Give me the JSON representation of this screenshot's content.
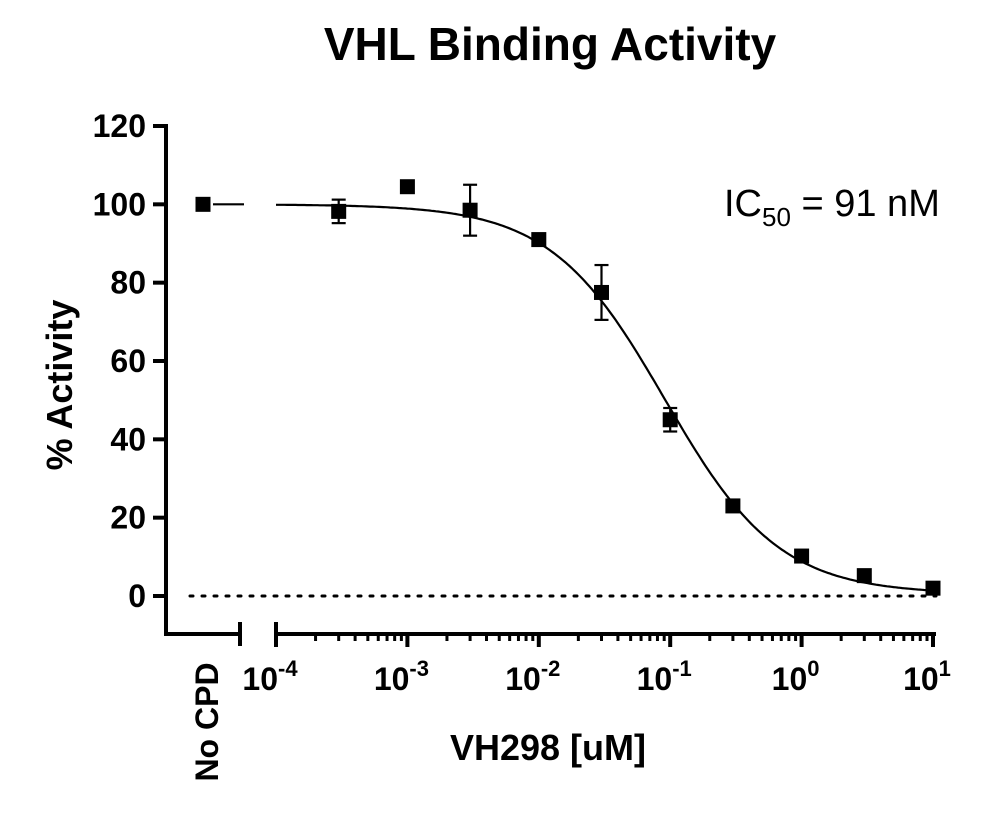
{
  "chart_data": {
    "type": "scatter",
    "title": "VHL Binding Activity",
    "xlabel": "VH298 [uM]",
    "ylabel": "% Activity",
    "x_scale": "log",
    "xlim": [
      0.0001,
      10
    ],
    "ylim": [
      -10,
      120
    ],
    "y_ticks": [
      0,
      20,
      40,
      60,
      80,
      100,
      120
    ],
    "x_ticks": [
      {
        "value": 0.0001,
        "base": "10",
        "exp": "-4"
      },
      {
        "value": 0.001,
        "base": "10",
        "exp": "-3"
      },
      {
        "value": 0.01,
        "base": "10",
        "exp": "-2"
      },
      {
        "value": 0.1,
        "base": "10",
        "exp": "-1"
      },
      {
        "value": 1,
        "base": "10",
        "exp": "0"
      },
      {
        "value": 10,
        "base": "10",
        "exp": "1"
      }
    ],
    "control": {
      "label": "No CPD",
      "value": 100
    },
    "annotation": {
      "prefix": "IC",
      "subscript": "50",
      "suffix": " = 91 nM"
    },
    "reference_line_y": 0,
    "series": [
      {
        "points": [
          {
            "x": 0.0003,
            "y": 98.2,
            "err": 3.0
          },
          {
            "x": 0.001,
            "y": 104.5,
            "err": 0
          },
          {
            "x": 0.003,
            "y": 98.5,
            "err": 6.5
          },
          {
            "x": 0.01,
            "y": 91.0,
            "err": 1.5
          },
          {
            "x": 0.03,
            "y": 77.5,
            "err": 7.0
          },
          {
            "x": 0.1,
            "y": 45.0,
            "err": 3.0
          },
          {
            "x": 0.3,
            "y": 23.0,
            "err": 0
          },
          {
            "x": 1,
            "y": 10.2,
            "err": 0
          },
          {
            "x": 3,
            "y": 5.2,
            "err": 0
          },
          {
            "x": 10,
            "y": 2.0,
            "err": 0
          }
        ]
      }
    ],
    "fit": {
      "top": 100,
      "bottom": 0.5,
      "ic50": 0.091,
      "hill": 1.0
    }
  }
}
